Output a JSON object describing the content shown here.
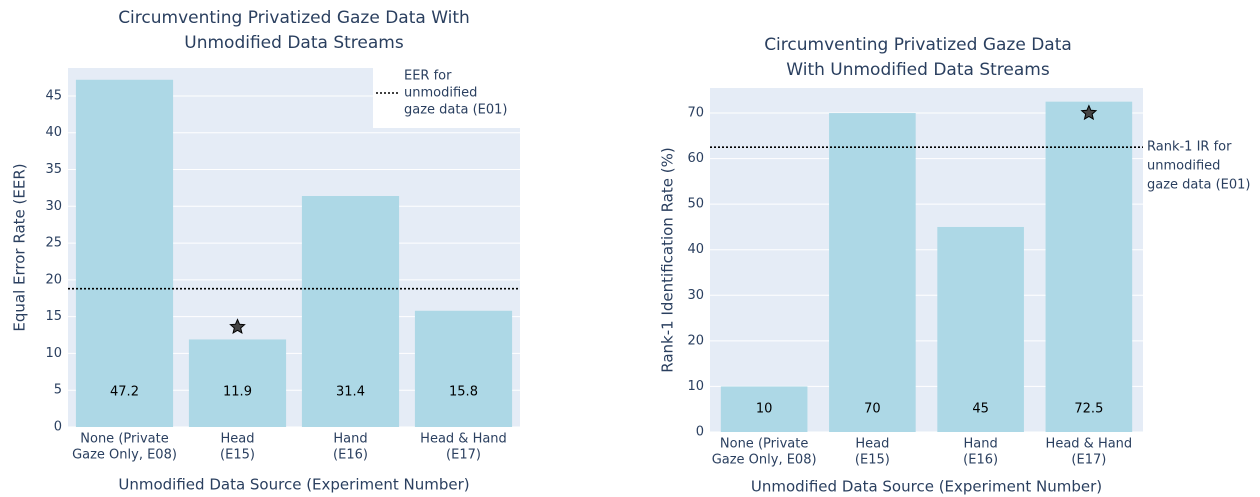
{
  "chart_data": [
    {
      "type": "bar",
      "title": [
        "Circumventing Privatized Gaze Data With",
        "Unmodified Data Streams"
      ],
      "xlabel": "Unmodified Data Source (Experiment Number)",
      "ylabel": "Equal Error Rate (EER)",
      "categories": [
        [
          "None (Private",
          "Gaze Only, E08)"
        ],
        [
          "Head",
          "(E15)"
        ],
        [
          "Hand",
          "(E16)"
        ],
        [
          "Head & Hand",
          "(E17)"
        ]
      ],
      "values": [
        47.2,
        11.9,
        31.4,
        15.8
      ],
      "color": "#add8e6",
      "star_values": [
        null,
        13.6,
        null,
        null
      ],
      "reference": {
        "value": 18.8,
        "label": [
          "EER for",
          "unmodified",
          "gaze data (E01)"
        ]
      },
      "ylim": [
        0,
        48.8
      ],
      "yticks": [
        0,
        5,
        10,
        15,
        20,
        25,
        30,
        35,
        40,
        45
      ],
      "grid": true
    },
    {
      "type": "bar",
      "title": [
        "Circumventing Privatized Gaze Data",
        "With Unmodified Data Streams"
      ],
      "xlabel": "Unmodified Data Source (Experiment Number)",
      "ylabel": "Rank-1 Identification Rate (%)",
      "categories": [
        [
          "None (Private",
          "Gaze Only, E08)"
        ],
        [
          "Head",
          "(E15)"
        ],
        [
          "Hand",
          "(E16)"
        ],
        [
          "Head & Hand",
          "(E17)"
        ]
      ],
      "values": [
        10,
        70,
        45,
        72.5
      ],
      "color": "#add8e6",
      "star_values": [
        null,
        null,
        null,
        70
      ],
      "reference": {
        "value": 62.5,
        "label": [
          "Rank-1 IR for",
          "unmodified",
          "gaze data (E01)"
        ]
      },
      "ylim": [
        0,
        75.5
      ],
      "yticks": [
        0,
        10,
        20,
        30,
        40,
        50,
        60,
        70
      ],
      "grid": true
    }
  ]
}
